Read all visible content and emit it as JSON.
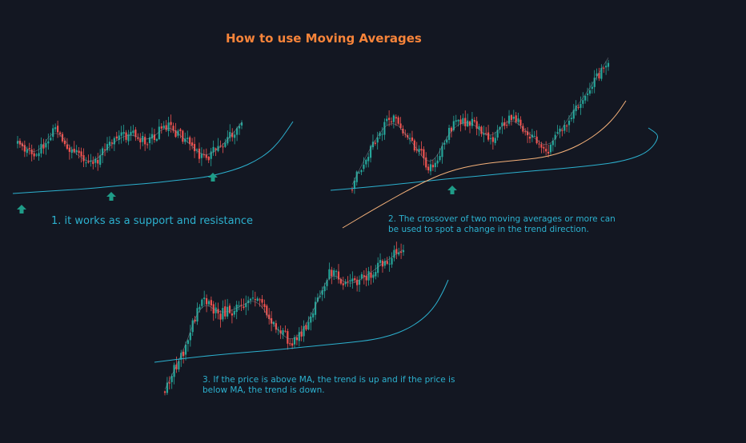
{
  "title": "How to use Moving Averages",
  "annotations": {
    "note1": "1. it works as a support and resistance",
    "note2_line1": "2. The crossover of two moving averages or more can",
    "note2_line2": "be used to spot a change in the trend direction.",
    "note3_line1": "3. If the price is above MA, the trend is up and if the price is",
    "note3_line2": "below MA, the trend is down."
  },
  "colors": {
    "background": "#131722",
    "title": "#f7843a",
    "annotation_text": "#2cb1cf",
    "bull_candle": "#26a69a",
    "bear_candle": "#ef5350",
    "ma_line": "#2cb1cf",
    "ma_fast_line": "#f6b27a",
    "arrow": "#1f9c88"
  },
  "chart_data": [
    {
      "type": "candlestick",
      "series": [
        {
          "name": "price",
          "path": [
            176,
            196,
            158,
            191,
            206,
            180,
            166,
            178,
            155,
            175,
            198,
            182,
            153
          ]
        },
        {
          "name": "moving average",
          "path": [
            242,
            239,
            236,
            232,
            229,
            225,
            222,
            216,
            210,
            202,
            191,
            178,
            164,
            152
          ]
        }
      ],
      "markers": [
        "up-arrow",
        "up-arrow",
        "up-arrow"
      ]
    },
    {
      "type": "candlestick",
      "series": [
        {
          "name": "price",
          "path": [
            231,
            180,
            147,
            176,
            212,
            160,
            150,
            176,
            145,
            168,
            187,
            146,
            113,
            72
          ]
        },
        {
          "name": "slow moving average",
          "path": [
            238,
            234,
            229,
            224,
            220,
            215,
            211,
            207,
            203,
            198,
            192,
            184,
            175,
            168,
            160
          ]
        },
        {
          "name": "fast moving average",
          "path": [
            285,
            260,
            232,
            214,
            205,
            201,
            197,
            188,
            175,
            160,
            144,
            126
          ]
        }
      ],
      "markers": [
        "up-arrow"
      ]
    },
    {
      "type": "candlestick",
      "series": [
        {
          "name": "price",
          "path": [
            487,
            440,
            375,
            393,
            385,
            372,
            410,
            430,
            395,
            338,
            358,
            345,
            327,
            312
          ]
        },
        {
          "name": "moving average",
          "path": [
            453,
            447,
            442,
            438,
            434,
            431,
            428,
            425,
            420,
            412,
            400,
            385,
            366,
            350
          ]
        }
      ]
    }
  ]
}
